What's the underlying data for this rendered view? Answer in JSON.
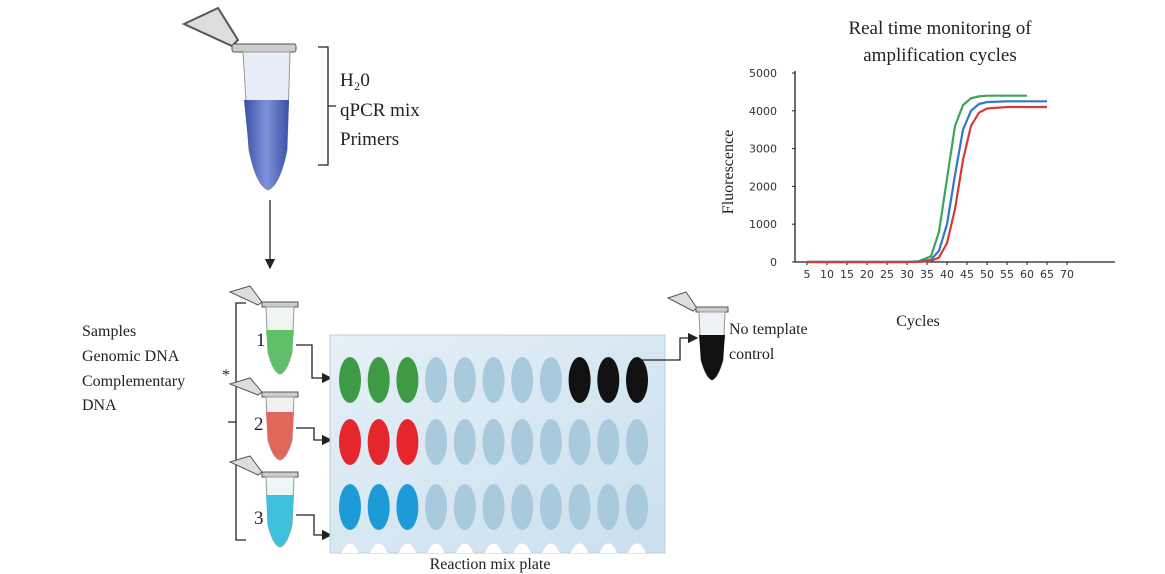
{
  "reagents": {
    "lines": [
      "H₂0",
      "qPCR mix",
      "Primers"
    ]
  },
  "samples": {
    "lines": [
      "Samples",
      "Genomic DNA",
      "Complementary",
      "DNA"
    ],
    "note": "*",
    "tube_labels": [
      "1",
      "2",
      "3"
    ]
  },
  "no_template": {
    "lines": [
      "No template",
      "control"
    ]
  },
  "plate": {
    "label": "Reaction mix plate"
  },
  "chart_data": {
    "type": "line",
    "title": [
      "Real time monitoring of",
      "amplification cycles"
    ],
    "x_label": "Cycles",
    "y_label": "Fluorescence",
    "x": [
      5,
      10,
      15,
      20,
      25,
      30,
      33,
      36,
      38,
      40,
      42,
      44,
      46,
      48,
      50,
      55,
      60,
      65
    ],
    "series": [
      {
        "color": "#3aa655",
        "values": [
          0,
          0,
          0,
          0,
          0,
          0,
          20,
          150,
          800,
          2200,
          3600,
          4150,
          4330,
          4380,
          4400,
          4400,
          4400,
          null
        ]
      },
      {
        "color": "#2e79c9",
        "values": [
          0,
          0,
          0,
          0,
          0,
          0,
          10,
          60,
          300,
          1000,
          2300,
          3500,
          4000,
          4180,
          4230,
          4250,
          4250,
          4250
        ]
      },
      {
        "color": "#d63a3a",
        "values": [
          0,
          0,
          0,
          0,
          0,
          0,
          5,
          30,
          120,
          500,
          1400,
          2700,
          3600,
          3950,
          4060,
          4100,
          4100,
          4100
        ]
      }
    ],
    "xlim": [
      2,
      82
    ],
    "ylim": [
      0,
      5000
    ],
    "xticks": [
      5,
      10,
      15,
      20,
      25,
      30,
      35,
      40,
      45,
      50,
      55,
      60,
      65,
      70
    ],
    "yticks": [
      0,
      1000,
      2000,
      3000,
      4000,
      5000
    ]
  }
}
